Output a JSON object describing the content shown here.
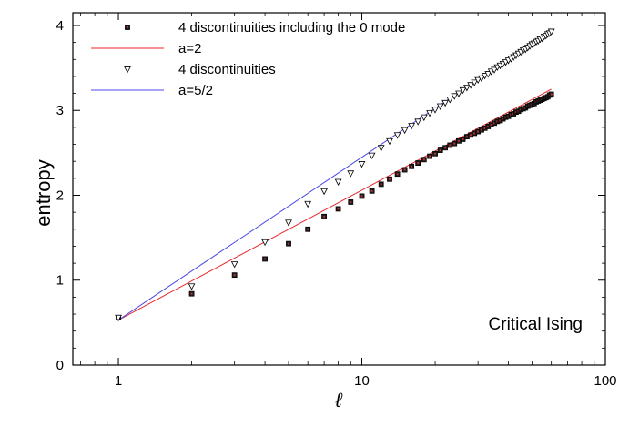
{
  "chart_data": {
    "type": "scatter",
    "title": "",
    "xlabel": "ℓ",
    "ylabel": "entropy",
    "xscale": "log",
    "xlim": [
      0.65,
      100
    ],
    "ylim": [
      0,
      4.15
    ],
    "x_ticks": [
      1,
      10,
      100
    ],
    "x_tick_labels": [
      "1",
      "10",
      "100"
    ],
    "y_ticks": [
      0,
      1,
      2,
      3,
      4
    ],
    "y_tick_labels": [
      "0",
      "1",
      "2",
      "3",
      "4"
    ],
    "grid": false,
    "legend_position": "top-left",
    "annotation": "Critical Ising",
    "series": [
      {
        "name": "4 discontinuities including the 0 mode",
        "kind": "markers",
        "marker": "square",
        "color": "#000000",
        "x": [
          1,
          2,
          3,
          4,
          5,
          6,
          7,
          8,
          9,
          10,
          11,
          12,
          13,
          14,
          15,
          16,
          17,
          18,
          19,
          20,
          21,
          22,
          23,
          24,
          25,
          26,
          27,
          28,
          29,
          30,
          31,
          32,
          33,
          34,
          35,
          36,
          37,
          38,
          39,
          40,
          41,
          42,
          43,
          44,
          45,
          46,
          47,
          48,
          49,
          50,
          51,
          52,
          53,
          54,
          55,
          56,
          57,
          58,
          59,
          60
        ],
        "y": [
          0.56,
          0.84,
          1.06,
          1.25,
          1.43,
          1.6,
          1.75,
          1.84,
          1.92,
          1.99,
          2.05,
          2.13,
          2.19,
          2.25,
          2.3,
          2.34,
          2.38,
          2.42,
          2.46,
          2.49,
          2.53,
          2.56,
          2.59,
          2.61,
          2.64,
          2.66,
          2.69,
          2.71,
          2.73,
          2.75,
          2.77,
          2.79,
          2.81,
          2.83,
          2.85,
          2.87,
          2.88,
          2.9,
          2.92,
          2.93,
          2.95,
          2.96,
          2.98,
          2.99,
          3.01,
          3.02,
          3.03,
          3.05,
          3.06,
          3.07,
          3.08,
          3.1,
          3.11,
          3.12,
          3.13,
          3.14,
          3.15,
          3.16,
          3.18,
          3.19
        ]
      },
      {
        "name": "a=2",
        "kind": "line",
        "color": "#e8262a",
        "x": [
          1,
          60
        ],
        "y": [
          0.53,
          3.25
        ]
      },
      {
        "name": "4 discontinuities",
        "kind": "markers",
        "marker": "triangle-down",
        "color": "#000000",
        "x": [
          1,
          2,
          3,
          4,
          5,
          6,
          7,
          8,
          9,
          10,
          11,
          12,
          13,
          14,
          15,
          16,
          17,
          18,
          19,
          20,
          21,
          22,
          23,
          24,
          25,
          26,
          27,
          28,
          29,
          30,
          31,
          32,
          33,
          34,
          35,
          36,
          37,
          38,
          39,
          40,
          41,
          42,
          43,
          44,
          45,
          46,
          47,
          48,
          49,
          50,
          51,
          52,
          53,
          54,
          55,
          56,
          57,
          58,
          59,
          60
        ],
        "y": [
          0.56,
          0.93,
          1.19,
          1.45,
          1.68,
          1.9,
          2.05,
          2.16,
          2.26,
          2.37,
          2.47,
          2.56,
          2.64,
          2.71,
          2.77,
          2.82,
          2.87,
          2.92,
          2.97,
          3.01,
          3.05,
          3.09,
          3.13,
          3.17,
          3.2,
          3.24,
          3.27,
          3.3,
          3.33,
          3.36,
          3.38,
          3.41,
          3.43,
          3.46,
          3.48,
          3.51,
          3.53,
          3.55,
          3.57,
          3.59,
          3.61,
          3.63,
          3.65,
          3.67,
          3.69,
          3.71,
          3.72,
          3.74,
          3.76,
          3.78,
          3.79,
          3.81,
          3.82,
          3.84,
          3.85,
          3.87,
          3.88,
          3.9,
          3.91,
          3.93
        ]
      },
      {
        "name": "a=5/2",
        "kind": "line",
        "color": "#4a4ae6",
        "x": [
          1,
          60
        ],
        "y": [
          0.53,
          3.94
        ]
      }
    ]
  }
}
